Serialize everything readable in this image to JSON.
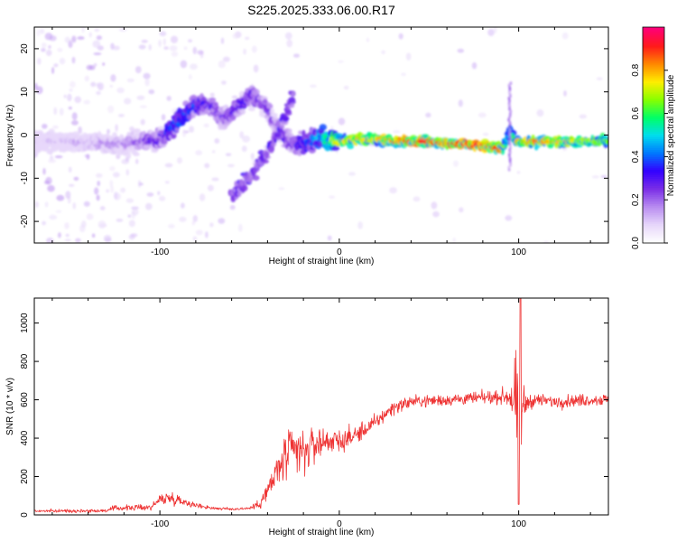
{
  "figure_title": "S225.2025.333.06.00.R17",
  "colors": {
    "snr_line": "#ee3333",
    "colormap": [
      "#ffffff",
      "#e6d6fa",
      "#b88cf0",
      "#7a2ee6",
      "#3300ff",
      "#0077ff",
      "#00ddee",
      "#00ff66",
      "#88ff00",
      "#ffee00",
      "#ff8800",
      "#ff1a1a",
      "#ff0077"
    ]
  },
  "chart_data": [
    {
      "type": "heatmap",
      "title": "",
      "xlabel": "Height of straight line (km)",
      "ylabel": "Frequency (Hz)",
      "xlim": [
        -170,
        150
      ],
      "ylim": [
        -25,
        25
      ],
      "xticks": [
        -100,
        0,
        100
      ],
      "yticks": [
        -20,
        -10,
        0,
        10,
        20
      ],
      "colorbar": {
        "label": "Normalized spectral amplitude",
        "range": [
          0.0,
          1.0
        ],
        "ticks": [
          0.0,
          0.2,
          0.4,
          0.6,
          0.8
        ]
      },
      "ridge": {
        "description": "frequency trace of dominant spectral peak",
        "x": [
          -170,
          -150,
          -130,
          -120,
          -110,
          -100,
          -95,
          -90,
          -85,
          -80,
          -75,
          -70,
          -65,
          -60,
          -55,
          -50,
          -45,
          -40,
          -35,
          -30,
          -25,
          -20,
          -15,
          -10,
          -5,
          0,
          10,
          20,
          30,
          40,
          50,
          60,
          70,
          80,
          90,
          93,
          95,
          97,
          100,
          110,
          120,
          130,
          140,
          150
        ],
        "y": [
          -1.5,
          -1.5,
          -2,
          -2,
          -1.5,
          -1,
          1,
          3,
          5,
          7,
          7,
          6,
          4,
          5,
          7,
          9,
          8,
          6,
          2,
          -1,
          -2,
          -2,
          -1,
          -0.5,
          -1,
          -1.5,
          -1,
          -1,
          -1.5,
          -1.5,
          -1.5,
          -2,
          -2,
          -2.5,
          -3,
          -2,
          2,
          -1,
          -1.5,
          -1.5,
          -1.5,
          -1.5,
          -1.5,
          -1.5
        ],
        "amplitude": [
          0.1,
          0.15,
          0.2,
          0.2,
          0.25,
          0.35,
          0.4,
          0.45,
          0.45,
          0.4,
          0.35,
          0.3,
          0.3,
          0.3,
          0.35,
          0.35,
          0.3,
          0.3,
          0.25,
          0.3,
          0.35,
          0.4,
          0.45,
          0.55,
          0.7,
          0.75,
          0.8,
          0.75,
          0.85,
          0.9,
          0.92,
          0.85,
          0.95,
          0.95,
          0.9,
          0.5,
          0.4,
          0.6,
          0.8,
          0.85,
          0.8,
          0.75,
          0.7,
          0.65
        ]
      },
      "secondary_branch": {
        "x": [
          -60,
          -50,
          -40,
          -30,
          -25
        ],
        "y": [
          -14,
          -10,
          -4,
          4,
          10
        ],
        "amplitude": 0.25
      }
    },
    {
      "type": "line",
      "title": "",
      "xlabel": "Height of straight line (km)",
      "ylabel": "SNR (10 * v/v)",
      "xlim": [
        -170,
        150
      ],
      "ylim": [
        0,
        1130
      ],
      "xticks": [
        -100,
        0,
        100
      ],
      "yticks": [
        0,
        200,
        400,
        600,
        800,
        1000
      ],
      "series": [
        {
          "name": "SNR",
          "envelope_x": [
            -170,
            -130,
            -125,
            -105,
            -100,
            -95,
            -90,
            -80,
            -70,
            -60,
            -50,
            -45,
            -40,
            -35,
            -30,
            -25,
            -20,
            -15,
            -10,
            -5,
            0,
            10,
            20,
            30,
            40,
            60,
            80,
            90,
            95,
            98,
            100,
            102,
            105,
            110,
            120,
            130,
            140,
            150
          ],
          "envelope_mean": [
            20,
            22,
            35,
            40,
            80,
            90,
            80,
            50,
            35,
            30,
            35,
            55,
            120,
            220,
            300,
            330,
            320,
            360,
            380,
            390,
            380,
            420,
            480,
            560,
            590,
            600,
            610,
            615,
            620,
            600,
            420,
            560,
            590,
            600,
            590,
            595,
            600,
            600
          ],
          "envelope_noise": [
            8,
            10,
            15,
            18,
            30,
            35,
            30,
            15,
            10,
            8,
            10,
            25,
            70,
            110,
            140,
            160,
            140,
            110,
            90,
            75,
            65,
            55,
            45,
            40,
            35,
            35,
            35,
            35,
            80,
            220,
            400,
            150,
            45,
            35,
            35,
            35,
            35,
            35
          ],
          "peak": {
            "x": 101,
            "y": 1130
          },
          "dip": {
            "x": 100,
            "y": 55
          }
        }
      ]
    }
  ]
}
